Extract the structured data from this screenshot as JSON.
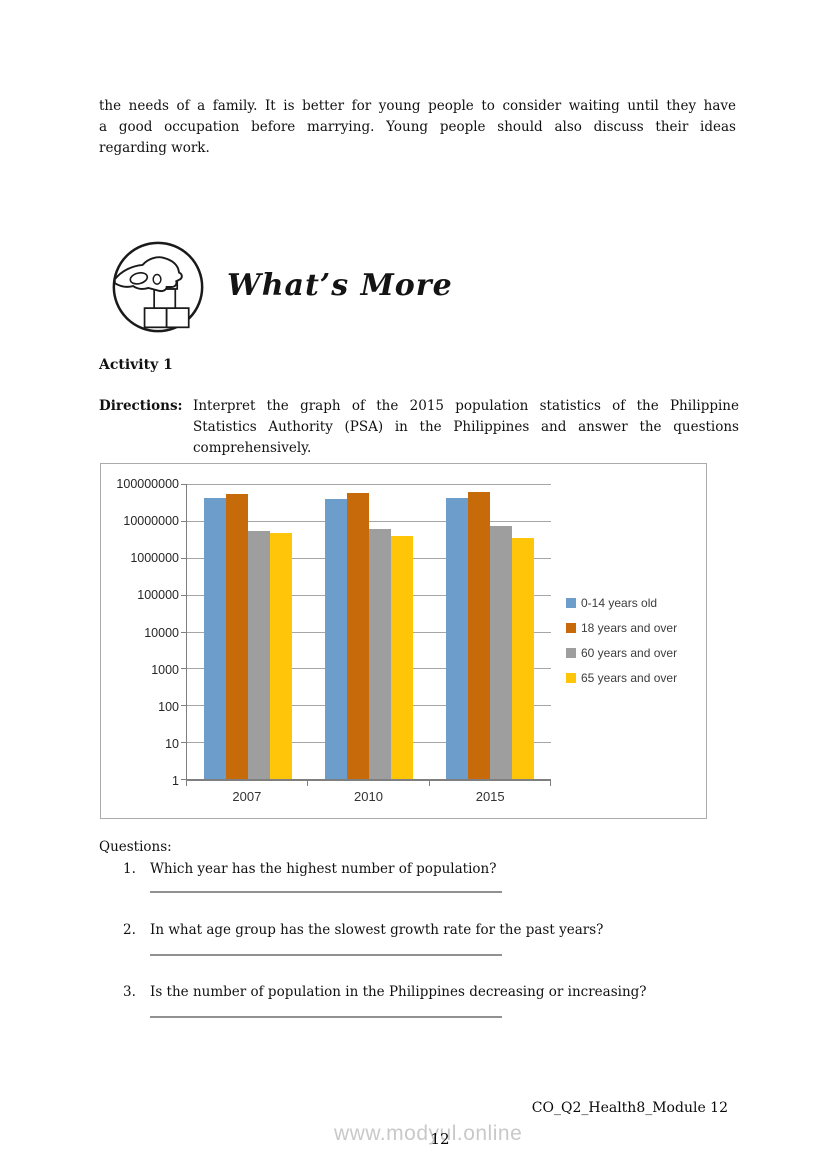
{
  "page": {
    "intro": {
      "lines": [
        "the needs of a family. It is better for young people to consider waiting until they have",
        "a good occupation before marrying. Young people should also discuss their ideas",
        "regarding work."
      ]
    },
    "section_heading": "What’s More",
    "icons": {
      "section_icon": "hand-stacking-blocks"
    },
    "activity_title": "Activity 1",
    "directions": {
      "label": "Directions:",
      "lines": [
        "Interpret the graph of the 2015 population statistics of the Philippine",
        "Statistics Authority (PSA) in the Philippines and answer the questions",
        "comprehensively."
      ]
    },
    "questions_label": "Questions:",
    "questions": [
      {
        "number": "1.",
        "text": "Which year has the highest number of population?"
      },
      {
        "number": "2.",
        "text": "In what age group has the slowest growth rate for the past years?"
      },
      {
        "number": "3.",
        "text": "Is the number of population in the Philippines decreasing or increasing?"
      }
    ],
    "footer": {
      "module_code": "CO_Q2_Health8_Module 12",
      "watermark": "www.modyul.online",
      "page_number": "12"
    }
  },
  "chart_data": {
    "type": "bar",
    "categories": [
      "2007",
      "2010",
      "2015"
    ],
    "series": [
      {
        "name": "0-14 years old",
        "color": "#6D9DCB",
        "values": [
          41000000,
          40000000,
          42000000
        ]
      },
      {
        "name": "18 years and over",
        "color": "#C66A0A",
        "values": [
          52000000,
          57000000,
          62000000
        ]
      },
      {
        "name": "60 years and over",
        "color": "#9E9E9E",
        "values": [
          5200000,
          6000000,
          7300000
        ]
      },
      {
        "name": "65 years and over",
        "color": "#FFC609",
        "values": [
          4600000,
          4000000,
          3500000
        ]
      }
    ],
    "title": "",
    "xlabel": "",
    "ylabel": "",
    "y_axis": {
      "scale": "log",
      "min": 1,
      "max": 100000000,
      "ticks": [
        1,
        10,
        100,
        1000,
        10000,
        100000,
        1000000,
        10000000,
        100000000
      ]
    },
    "grid": true,
    "legend_position": "right"
  }
}
